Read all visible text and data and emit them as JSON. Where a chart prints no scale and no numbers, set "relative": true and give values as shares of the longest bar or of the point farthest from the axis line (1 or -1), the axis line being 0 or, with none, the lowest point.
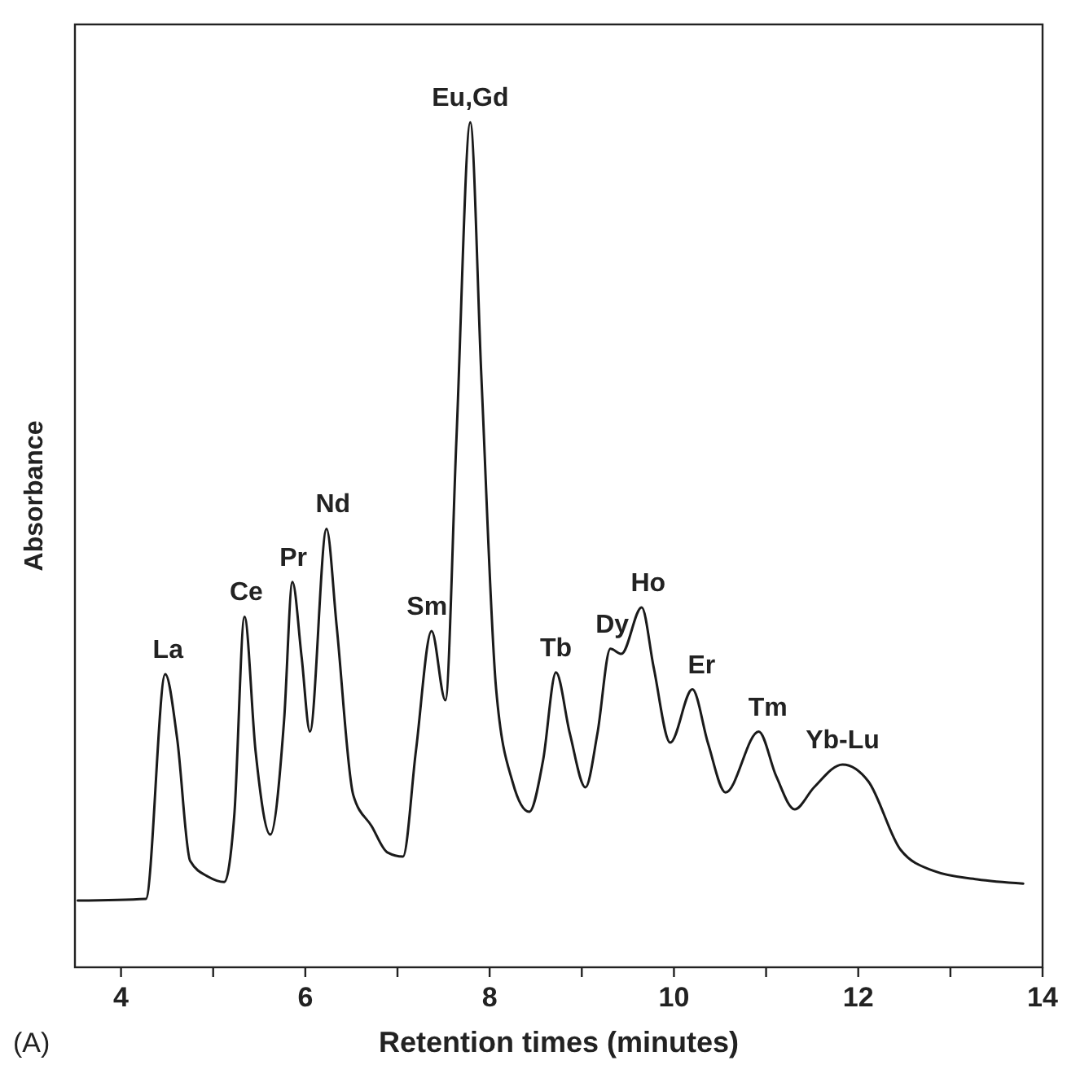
{
  "chart_data": {
    "type": "line",
    "xlabel": "Retention times (minutes)",
    "ylabel": "Absorbance",
    "relative": true,
    "tick_labels": "x",
    "xlim": [
      3.5,
      14
    ],
    "xticks": [
      4,
      {
        "value": 5,
        "label": null
      },
      6,
      {
        "value": 7,
        "label": null
      },
      8,
      {
        "value": 9,
        "label": null
      },
      10,
      {
        "value": 11,
        "label": null
      },
      12,
      {
        "value": 13,
        "label": null
      },
      14
    ],
    "series": [
      {
        "color": "#1a1a1a",
        "x": [
          3.53,
          4.27,
          4.48,
          4.61,
          4.75,
          4.95,
          5.12,
          5.23,
          5.34,
          5.46,
          5.62,
          5.77,
          5.86,
          5.96,
          6.05,
          6.23,
          6.34,
          6.52,
          6.72,
          6.89,
          7.06,
          7.2,
          7.37,
          7.52,
          7.64,
          7.79,
          7.91,
          8.07,
          8.25,
          8.43,
          8.58,
          8.72,
          8.87,
          9.04,
          9.17,
          9.31,
          9.43,
          9.65,
          9.78,
          9.96,
          10.2,
          10.37,
          10.56,
          10.92,
          11.11,
          11.31,
          11.52,
          11.83,
          12.11,
          12.46,
          12.82,
          13.29,
          13.79
        ],
        "values": [
          0.079,
          0.081,
          0.347,
          0.27,
          0.126,
          0.107,
          0.101,
          0.181,
          0.415,
          0.256,
          0.157,
          0.293,
          0.456,
          0.367,
          0.279,
          0.519,
          0.404,
          0.204,
          0.167,
          0.136,
          0.131,
          0.256,
          0.398,
          0.316,
          0.626,
          1.0,
          0.7,
          0.33,
          0.219,
          0.184,
          0.245,
          0.349,
          0.277,
          0.213,
          0.277,
          0.377,
          0.371,
          0.426,
          0.355,
          0.266,
          0.329,
          0.265,
          0.207,
          0.279,
          0.226,
          0.187,
          0.213,
          0.24,
          0.22,
          0.139,
          0.114,
          0.104,
          0.099
        ]
      }
    ],
    "annotations": [
      {
        "text": "La",
        "x": 4.51,
        "y": 0.347
      },
      {
        "text": "Ce",
        "x": 5.36,
        "y": 0.415
      },
      {
        "text": "Pr",
        "x": 5.87,
        "y": 0.456
      },
      {
        "text": "Nd",
        "x": 6.3,
        "y": 0.519
      },
      {
        "text": "Sm",
        "x": 7.32,
        "y": 0.398
      },
      {
        "text": "Eu,Gd",
        "x": 7.79,
        "y": 1.0
      },
      {
        "text": "Tb",
        "x": 8.72,
        "y": 0.349
      },
      {
        "text": "Dy",
        "x": 9.33,
        "y": 0.377
      },
      {
        "text": "Ho",
        "x": 9.72,
        "y": 0.426
      },
      {
        "text": "Er",
        "x": 10.3,
        "y": 0.329
      },
      {
        "text": "Tm",
        "x": 11.02,
        "y": 0.279
      },
      {
        "text": "Yb-Lu",
        "x": 11.83,
        "y": 0.24
      },
      "(A)"
    ]
  }
}
